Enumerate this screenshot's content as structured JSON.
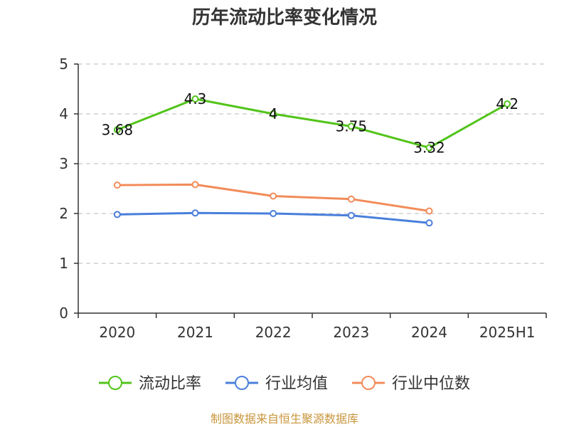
{
  "chart_data": {
    "type": "line",
    "title": "历年流动比率变化情况",
    "categories": [
      "2020",
      "2021",
      "2022",
      "2023",
      "2024",
      "2025H1"
    ],
    "ylim": [
      0,
      5
    ],
    "yticks": [
      0,
      1,
      2,
      3,
      4,
      5
    ],
    "grid": true,
    "legend_position": "bottom",
    "series": [
      {
        "name": "流动比率",
        "color": "#52c41a",
        "values": [
          3.68,
          4.3,
          4,
          3.75,
          3.32,
          4.2
        ],
        "labels": [
          "3.68",
          "4.3",
          "4",
          "3.75",
          "3.32",
          "4.2"
        ]
      },
      {
        "name": "行业均值",
        "color": "#4a7fdb",
        "values": [
          1.98,
          2.01,
          2.0,
          1.96,
          1.81,
          null
        ]
      },
      {
        "name": "行业中位数",
        "color": "#f28c5a",
        "values": [
          2.57,
          2.58,
          2.35,
          2.29,
          2.05,
          null
        ]
      }
    ],
    "source": "制图数据来自恒生聚源数据库"
  }
}
